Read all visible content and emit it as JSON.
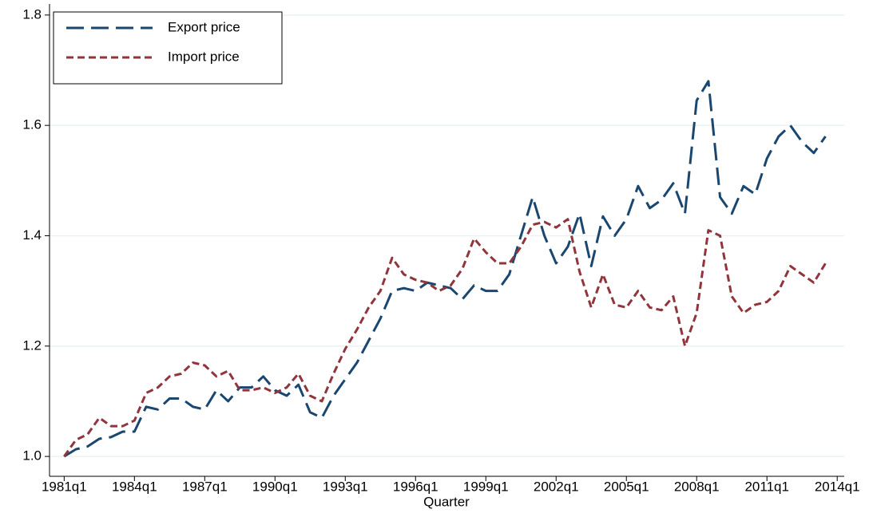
{
  "chart_data": {
    "type": "line",
    "x_label": "Quarter",
    "x": [
      84,
      86,
      88,
      90,
      92,
      94,
      96,
      98,
      100,
      102,
      104,
      106,
      108,
      110,
      112,
      114,
      116,
      118,
      120,
      122,
      124,
      126,
      128,
      130,
      132,
      134,
      136,
      138,
      140,
      142,
      144,
      146,
      148,
      150,
      152,
      154,
      156,
      158,
      160,
      162,
      164,
      166,
      168,
      170,
      172,
      174,
      176,
      178,
      180,
      182,
      184,
      186,
      188,
      190,
      192,
      194,
      196,
      198,
      200,
      202,
      204,
      206,
      208,
      210,
      212,
      214
    ],
    "series": [
      {
        "name": "Export price",
        "color": "#1a476f",
        "dash": "22,9",
        "values": [
          1.0,
          1.013,
          1.018,
          1.032,
          1.035,
          1.045,
          1.045,
          1.09,
          1.085,
          1.105,
          1.105,
          1.09,
          1.085,
          1.12,
          1.1,
          1.125,
          1.125,
          1.145,
          1.12,
          1.11,
          1.13,
          1.08,
          1.07,
          1.11,
          1.14,
          1.17,
          1.21,
          1.25,
          1.3,
          1.305,
          1.3,
          1.315,
          1.31,
          1.305,
          1.285,
          1.31,
          1.3,
          1.3,
          1.33,
          1.4,
          1.47,
          1.4,
          1.35,
          1.38,
          1.44,
          1.345,
          1.435,
          1.4,
          1.43,
          1.49,
          1.45,
          1.465,
          1.495,
          1.44,
          1.645,
          1.68,
          1.47,
          1.44,
          1.49,
          1.475,
          1.54,
          1.58,
          1.6,
          1.57,
          1.55,
          1.58
        ]
      },
      {
        "name": "Import price",
        "color": "#90353b",
        "dash": "9,5",
        "values": [
          1.0,
          1.03,
          1.04,
          1.07,
          1.055,
          1.055,
          1.065,
          1.115,
          1.125,
          1.145,
          1.15,
          1.17,
          1.165,
          1.145,
          1.155,
          1.12,
          1.12,
          1.125,
          1.115,
          1.125,
          1.15,
          1.11,
          1.1,
          1.15,
          1.195,
          1.23,
          1.27,
          1.3,
          1.36,
          1.33,
          1.32,
          1.315,
          1.3,
          1.31,
          1.34,
          1.395,
          1.37,
          1.35,
          1.35,
          1.38,
          1.42,
          1.425,
          1.415,
          1.43,
          1.335,
          1.27,
          1.33,
          1.275,
          1.27,
          1.3,
          1.27,
          1.265,
          1.29,
          1.2,
          1.26,
          1.41,
          1.4,
          1.29,
          1.26,
          1.275,
          1.28,
          1.3,
          1.345,
          1.33,
          1.315,
          1.35
        ]
      }
    ],
    "xlim": [
      81.5,
      217.2
    ],
    "ylim": [
      0.964,
      1.82
    ],
    "xticks": [
      {
        "value": 84,
        "label": "1981q1"
      },
      {
        "value": 96,
        "label": "1984q1"
      },
      {
        "value": 108,
        "label": "1987q1"
      },
      {
        "value": 120,
        "label": "1990q1"
      },
      {
        "value": 132,
        "label": "1993q1"
      },
      {
        "value": 144,
        "label": "1996q1"
      },
      {
        "value": 156,
        "label": "1999q1"
      },
      {
        "value": 168,
        "label": "2002q1"
      },
      {
        "value": 180,
        "label": "2005q1"
      },
      {
        "value": 192,
        "label": "2008q1"
      },
      {
        "value": 204,
        "label": "2011q1"
      },
      {
        "value": 216,
        "label": "2014q1"
      }
    ],
    "yticks": [
      {
        "value": 1,
        "label": "1.0"
      },
      1.2,
      1.4,
      1.6,
      1.8
    ],
    "grid": true,
    "legend": "top-left"
  }
}
